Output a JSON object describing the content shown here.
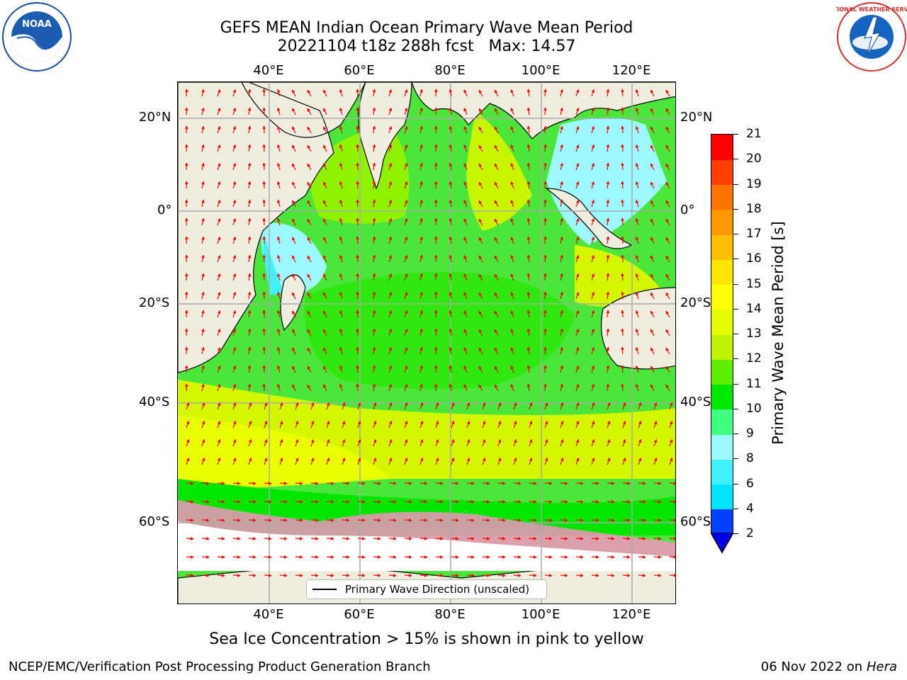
{
  "title": {
    "line1": "GEFS MEAN Indian Ocean Primary Wave Mean Period",
    "line2": "20221104 t18z 288h fcst   Max: 14.57"
  },
  "axes": {
    "lon_labels": [
      "40°E",
      "60°E",
      "80°E",
      "100°E",
      "120°E"
    ],
    "lat_labels": [
      "20°N",
      "0°",
      "20°S",
      "40°S",
      "60°S"
    ]
  },
  "colorbar": {
    "label": "Primary Wave Mean Period [s]",
    "ticks": [
      "2",
      "4",
      "6",
      "8",
      "9",
      "10",
      "11",
      "12",
      "13",
      "14",
      "15",
      "16",
      "17",
      "18",
      "19",
      "20",
      "21"
    ],
    "colors": [
      "#0040ff",
      "#00e6ff",
      "#40f2ff",
      "#9cf9ff",
      "#40ff80",
      "#00e600",
      "#5ced00",
      "#bff200",
      "#e6ff00",
      "#ffff00",
      "#ffe600",
      "#ffbf00",
      "#ff9900",
      "#ff7300",
      "#ff4000",
      "#ff0000"
    ],
    "extend_color": "#0000e6"
  },
  "legend": {
    "label": "Primary Wave Direction (unscaled)"
  },
  "caption": "Sea Ice Concentration > 15% is shown in pink to yellow",
  "footer": {
    "left": "NCEP/EMC/Verification Post Processing Product Generation Branch",
    "date": "06 Nov 2022 on",
    "machine": "Hera"
  },
  "logos": {
    "left": "NOAA",
    "right": "NATIONAL WEATHER SERVICE"
  }
}
